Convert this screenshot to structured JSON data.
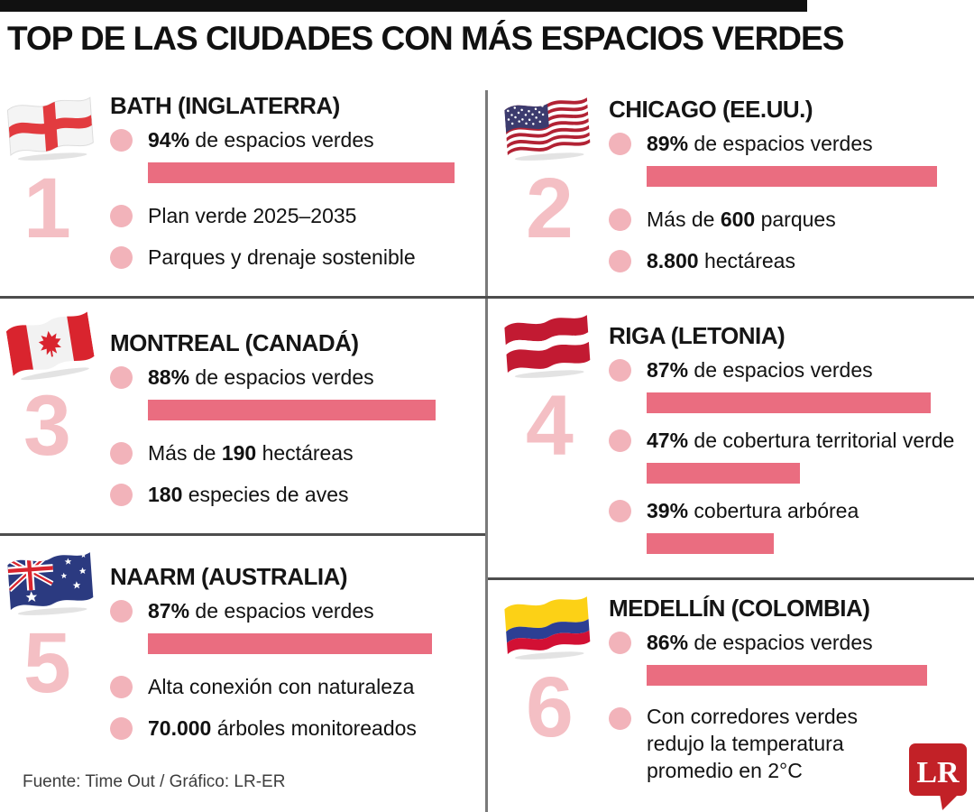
{
  "title": "TOP DE LAS CIUDADES CON MÁS ESPACIOS VERDES",
  "cities": [
    {
      "rank": "1",
      "title": "BATH (INGLATERRA)",
      "flag": "england",
      "facts": [
        {
          "pre": "",
          "bold": "94%",
          "post": " de espacios verdes",
          "bar": 94
        },
        {
          "pre": "Plan verde 2025–2035",
          "bold": "",
          "post": ""
        },
        {
          "pre": "Parques y drenaje sostenible",
          "bold": "",
          "post": ""
        }
      ]
    },
    {
      "rank": "2",
      "title": "CHICAGO (EE.UU.)",
      "flag": "usa",
      "facts": [
        {
          "pre": "",
          "bold": "89%",
          "post": " de espacios verdes",
          "bar": 89
        },
        {
          "pre": "Más de ",
          "bold": "600",
          "post": " parques"
        },
        {
          "pre": "",
          "bold": "8.800",
          "post": " hectáreas"
        }
      ]
    },
    {
      "rank": "3",
      "title": "MONTREAL (CANADÁ)",
      "flag": "canada",
      "facts": [
        {
          "pre": "",
          "bold": "88%",
          "post": " de espacios verdes",
          "bar": 88
        },
        {
          "pre": "Más de ",
          "bold": "190",
          "post": " hectáreas"
        },
        {
          "pre": "",
          "bold": "180",
          "post": " especies de aves"
        }
      ]
    },
    {
      "rank": "4",
      "title": "RIGA (LETONIA)",
      "flag": "latvia",
      "facts": [
        {
          "pre": "",
          "bold": "87%",
          "post": " de espacios verdes",
          "bar": 87
        },
        {
          "pre": "",
          "bold": "47%",
          "post": " de cobertura territorial verde",
          "bar": 47
        },
        {
          "pre": "",
          "bold": "39%",
          "post": " cobertura arbórea",
          "bar": 39
        }
      ]
    },
    {
      "rank": "5",
      "title": "NAARM (AUSTRALIA)",
      "flag": "australia",
      "facts": [
        {
          "pre": "",
          "bold": "87%",
          "post": " de espacios verdes",
          "bar": 87
        },
        {
          "pre": "Alta conexión con naturaleza",
          "bold": "",
          "post": ""
        },
        {
          "pre": "",
          "bold": "70.000",
          "post": " árboles monitoreados"
        }
      ]
    },
    {
      "rank": "6",
      "title": "MEDELLÍN (COLOMBIA)",
      "flag": "colombia",
      "facts": [
        {
          "pre": "",
          "bold": "86%",
          "post": " de espacios verdes",
          "bar": 86
        },
        {
          "pre": "Con corredores verdes redujo la temperatura promedio en 2°C",
          "bold": "",
          "post": ""
        }
      ]
    }
  ],
  "footer": {
    "source": "Fuente: Time Out / Gráfico: LR-ER",
    "logo_text": "LR"
  },
  "colors": {
    "bar": "#ea6d80",
    "bullet": "#f2b3ba",
    "rank": "#f4bfc4",
    "logo_red": "#c22127",
    "divider": "#4d4d4d"
  },
  "chart_data": {
    "type": "bar",
    "title": "TOP DE LAS CIUDADES CON MÁS ESPACIOS VERDES",
    "categories": [
      "Bath (Inglaterra)",
      "Chicago (EE.UU.)",
      "Montreal (Canadá)",
      "Riga (Letonia)",
      "Naarm (Australia)",
      "Medellín (Colombia)"
    ],
    "series": [
      {
        "name": "% de espacios verdes",
        "values": [
          94,
          89,
          88,
          87,
          87,
          86
        ]
      }
    ],
    "extra_bars": [
      {
        "city": "Riga (Letonia)",
        "label": "de cobertura territorial verde",
        "value": 47
      },
      {
        "city": "Riga (Letonia)",
        "label": "cobertura arbórea",
        "value": 39
      }
    ],
    "xlabel": "",
    "ylabel": "%",
    "ylim": [
      0,
      100
    ],
    "legend_position": "none",
    "grid": false,
    "source": "Fuente: Time Out / Gráfico: LR-ER"
  }
}
